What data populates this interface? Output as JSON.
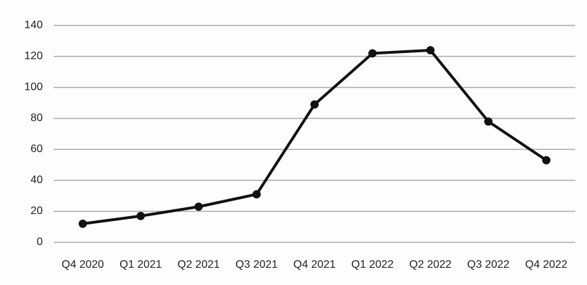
{
  "chart_data": {
    "type": "line",
    "categories": [
      "Q4 2020",
      "Q1 2021",
      "Q2 2021",
      "Q3 2021",
      "Q4 2021",
      "Q1 2022",
      "Q2 2022",
      "Q3 2022",
      "Q4 2022"
    ],
    "values": [
      12,
      17,
      23,
      31,
      89,
      122,
      124,
      78,
      53
    ],
    "color": "#111111",
    "ylim": [
      0,
      140
    ],
    "yticks": [
      0,
      20,
      40,
      60,
      80,
      100,
      120,
      140
    ],
    "grid": true
  }
}
